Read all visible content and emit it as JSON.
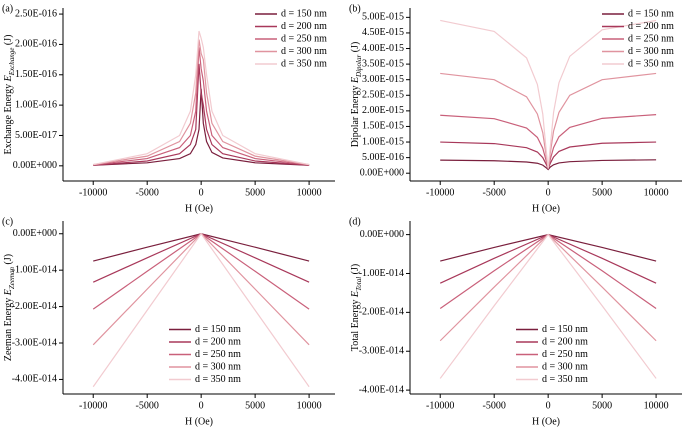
{
  "chart_data": [
    {
      "type": "line",
      "label": "(a)",
      "ylabel": "Exchange Energy ",
      "ylabel_symbol": "E",
      "ylabel_sub": "Exchange",
      "ylabel_unit": " (J)",
      "xlabel": "H (Oe)",
      "legend": "upper right",
      "x": [
        -10000,
        -5000,
        -2000,
        -1000,
        -500,
        -200,
        0,
        200,
        500,
        1000,
        2000,
        5000,
        10000
      ],
      "xlim": [
        -12800,
        12400
      ],
      "xticks": [
        -10000,
        -5000,
        0,
        5000,
        10000
      ],
      "ylim": [
        -2.5e-17,
        2.6e-16
      ],
      "yticks": [
        {
          "value": 0,
          "label": "0.00E+000"
        },
        {
          "value": 5e-17,
          "label": "5.00E-017"
        },
        {
          "value": 1e-16,
          "label": "1.00E-016"
        },
        {
          "value": 1.5e-16,
          "label": "1.50E-016"
        },
        {
          "value": 2e-16,
          "label": "2.00E-016"
        },
        {
          "value": 2.5e-16,
          "label": "2.50E-016"
        }
      ],
      "series": [
        {
          "name": "d = 150 nm",
          "color": "#7a1f3d",
          "values": [
            1e-18,
            5e-18,
            1.2e-17,
            2e-17,
            3.5e-17,
            6e-17,
            1.27e-16,
            7e-17,
            4e-17,
            2.2e-17,
            1.3e-17,
            5e-18,
            1e-18
          ]
        },
        {
          "name": "d = 200 nm",
          "color": "#a8385a",
          "values": [
            1e-18,
            8e-18,
            2e-17,
            3.5e-17,
            6e-17,
            1.68e-16,
            1.2e-16,
            1e-16,
            6e-17,
            3.5e-17,
            2e-17,
            8e-18,
            1e-18
          ]
        },
        {
          "name": "d = 250 nm",
          "color": "#c9607a",
          "values": [
            1.5e-18,
            1.2e-17,
            3e-17,
            5e-17,
            9e-17,
            1.95e-16,
            1.6e-16,
            1.4e-16,
            9e-17,
            5e-17,
            3e-17,
            1.2e-17,
            1.5e-18
          ]
        },
        {
          "name": "d = 300 nm",
          "color": "#e0949f",
          "values": [
            2e-18,
            1.6e-17,
            4e-17,
            7e-17,
            1.2e-16,
            2.08e-16,
            1.85e-16,
            1.75e-16,
            1.2e-16,
            7e-17,
            4e-17,
            1.6e-17,
            2e-18
          ]
        },
        {
          "name": "d = 350 nm",
          "color": "#f2cbd0",
          "values": [
            2e-18,
            2e-17,
            5e-17,
            9e-17,
            1.5e-16,
            2.22e-16,
            2.1e-16,
            1.95e-16,
            1.5e-16,
            9e-17,
            5e-17,
            2e-17,
            2e-18
          ]
        }
      ]
    },
    {
      "type": "line",
      "label": "(b)",
      "ylabel": "Dipolar Energy ",
      "ylabel_symbol": "E",
      "ylabel_sub": "Dipolar",
      "ylabel_unit": " (J)",
      "xlabel": "H (Oe)",
      "legend": "upper right",
      "x": [
        -10000,
        -5000,
        -2000,
        -1000,
        -500,
        -200,
        0,
        200,
        500,
        1000,
        2000,
        5000,
        10000
      ],
      "xlim": [
        -12800,
        12400
      ],
      "xticks": [
        -10000,
        -5000,
        0,
        5000,
        10000
      ],
      "ylim": [
        -2.5e-16,
        5.3e-15
      ],
      "yticks": [
        {
          "value": 0,
          "label": "0.00E+000"
        },
        {
          "value": 5e-16,
          "label": "5.00E-016"
        },
        {
          "value": 1e-15,
          "label": "1.00E-015"
        },
        {
          "value": 1.5e-15,
          "label": "1.50E-015"
        },
        {
          "value": 2e-15,
          "label": "2.00E-015"
        },
        {
          "value": 2.5e-15,
          "label": "2.50E-015"
        },
        {
          "value": 3e-15,
          "label": "3.00E-015"
        },
        {
          "value": 3.5e-15,
          "label": "3.50E-015"
        },
        {
          "value": 4e-15,
          "label": "4.00E-015"
        },
        {
          "value": 4.5e-15,
          "label": "4.50E-015"
        },
        {
          "value": 5e-15,
          "label": "5.00E-015"
        }
      ],
      "series": [
        {
          "name": "d = 150 nm",
          "color": "#7a1f3d",
          "values": [
            4.2e-16,
            4e-16,
            3.6e-16,
            3.2e-16,
            2.6e-16,
            1.8e-16,
            1.2e-16,
            2e-16,
            2.7e-16,
            3.3e-16,
            3.7e-16,
            4.1e-16,
            4.3e-16
          ]
        },
        {
          "name": "d = 200 nm",
          "color": "#a8385a",
          "values": [
            1e-15,
            9.5e-16,
            8.2e-16,
            6.8e-16,
            5e-16,
            3e-16,
            1.5e-16,
            3.2e-16,
            5.2e-16,
            7e-16,
            8.4e-16,
            9.6e-16,
            1e-15
          ]
        },
        {
          "name": "d = 250 nm",
          "color": "#c9607a",
          "values": [
            1.86e-15,
            1.75e-15,
            1.45e-15,
            1.15e-15,
            8e-16,
            4.2e-16,
            1.5e-16,
            4.5e-16,
            8.2e-16,
            1.17e-15,
            1.47e-15,
            1.76e-15,
            1.88e-15
          ]
        },
        {
          "name": "d = 300 nm",
          "color": "#e0949f",
          "values": [
            3.2e-15,
            3e-15,
            2.45e-15,
            1.9e-15,
            1.3e-15,
            6e-16,
            1.5e-16,
            6.5e-16,
            1.35e-15,
            1.95e-15,
            2.5e-15,
            3e-15,
            3.2e-15
          ]
        },
        {
          "name": "d = 350 nm",
          "color": "#f2cbd0",
          "values": [
            4.9e-15,
            4.55e-15,
            3.7e-15,
            2.85e-15,
            1.9e-15,
            8e-16,
            1.5e-16,
            8.5e-16,
            1.95e-15,
            2.9e-15,
            3.75e-15,
            4.6e-15,
            4.9e-15
          ]
        }
      ]
    },
    {
      "type": "line",
      "label": "(c)",
      "ylabel": "Zeeman Energy ",
      "ylabel_symbol": "E",
      "ylabel_sub": "Zeeman",
      "ylabel_unit": " (J)",
      "xlabel": "H (Oe)",
      "legend": "lower center",
      "x": [
        -10000,
        -5000,
        0,
        5000,
        10000
      ],
      "xlim": [
        -12800,
        12400
      ],
      "xticks": [
        -10000,
        -5000,
        0,
        5000,
        10000
      ],
      "ylim": [
        -4.4e-14,
        3.5e-15
      ],
      "yticks": [
        {
          "value": 0,
          "label": "0.00E+000"
        },
        {
          "value": -1e-14,
          "label": "-1.00E-014"
        },
        {
          "value": -2e-14,
          "label": "-2.00E-014"
        },
        {
          "value": -3e-14,
          "label": "-3.00E-014"
        },
        {
          "value": -4e-14,
          "label": "-4.00E-014"
        }
      ],
      "series": [
        {
          "name": "d = 150 nm",
          "color": "#7a1f3d",
          "values": [
            -7.5e-15,
            -3.7e-15,
            0,
            -3.7e-15,
            -7.5e-15
          ]
        },
        {
          "name": "d = 200 nm",
          "color": "#a8385a",
          "values": [
            -1.33e-14,
            -6.6e-15,
            0,
            -6.6e-15,
            -1.33e-14
          ]
        },
        {
          "name": "d = 250 nm",
          "color": "#c9607a",
          "values": [
            -2.07e-14,
            -1.03e-14,
            0,
            -1.03e-14,
            -2.07e-14
          ]
        },
        {
          "name": "d = 300 nm",
          "color": "#e0949f",
          "values": [
            -3.05e-14,
            -1.52e-14,
            0,
            -1.52e-14,
            -3.05e-14
          ]
        },
        {
          "name": "d = 350 nm",
          "color": "#f2cbd0",
          "values": [
            -4.2e-14,
            -2.1e-14,
            0,
            -2.1e-14,
            -4.2e-14
          ]
        }
      ]
    },
    {
      "type": "line",
      "label": "(d)",
      "ylabel": "Total Energy ",
      "ylabel_symbol": "E",
      "ylabel_sub": "Total",
      "ylabel_unit": " (J)",
      "xlabel": "H (Oe)",
      "legend": "lower center",
      "x": [
        -10000,
        -5000,
        0,
        5000,
        10000
      ],
      "xlim": [
        -12800,
        12400
      ],
      "xticks": [
        -10000,
        -5000,
        0,
        5000,
        10000
      ],
      "ylim": [
        -4.1e-14,
        3.5e-15
      ],
      "yticks": [
        {
          "value": 0,
          "label": "0.00E+000"
        },
        {
          "value": -1e-14,
          "label": "-1.00E-014"
        },
        {
          "value": -2e-14,
          "label": "-2.00E-014"
        },
        {
          "value": -3e-14,
          "label": "-3.00E-014"
        },
        {
          "value": -4e-14,
          "label": "-4.00E-014"
        }
      ],
      "series": [
        {
          "name": "d = 150 nm",
          "color": "#7a1f3d",
          "values": [
            -6.8e-15,
            -3.3e-15,
            0,
            -3.3e-15,
            -6.8e-15
          ]
        },
        {
          "name": "d = 200 nm",
          "color": "#a8385a",
          "values": [
            -1.25e-14,
            -6.1e-15,
            0,
            -6.1e-15,
            -1.25e-14
          ]
        },
        {
          "name": "d = 250 nm",
          "color": "#c9607a",
          "values": [
            -1.9e-14,
            -9.3e-15,
            0,
            -9.3e-15,
            -1.9e-14
          ]
        },
        {
          "name": "d = 300 nm",
          "color": "#e0949f",
          "values": [
            -2.73e-14,
            -1.35e-14,
            0,
            -1.35e-14,
            -2.73e-14
          ]
        },
        {
          "name": "d = 350 nm",
          "color": "#f2cbd0",
          "values": [
            -3.7e-14,
            -1.83e-14,
            0,
            -1.83e-14,
            -3.7e-14
          ]
        }
      ]
    }
  ]
}
